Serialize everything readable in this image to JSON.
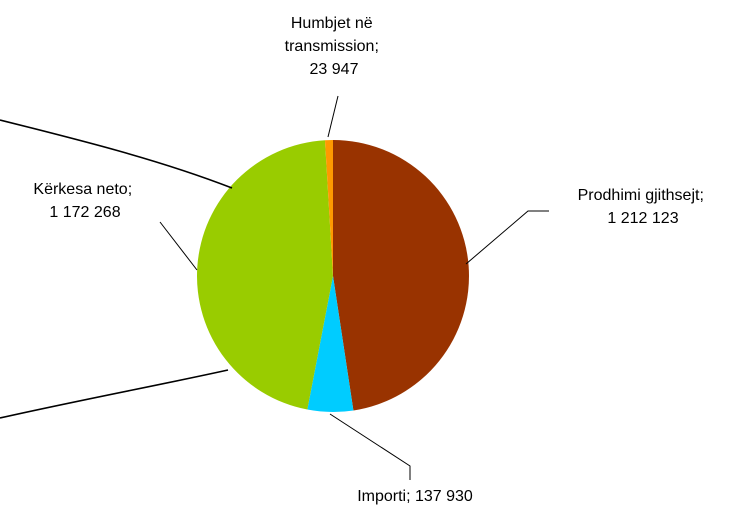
{
  "chart_data": {
    "type": "pie",
    "title": "",
    "legend": "none",
    "slices": [
      {
        "name": "Prodhimi gjithsejt",
        "label_line1": "Prodhimi gjithsejt;",
        "label_line2": "1 212 123",
        "value": 1212123,
        "color": "#993300"
      },
      {
        "name": "Importi",
        "label_line1": "Importi;  137 930",
        "value": 137930,
        "color": "#00CCFF"
      },
      {
        "name": "Kërkesa neto",
        "label_line1": "Kërkesa neto;",
        "label_line2": "1 172 268",
        "value": 1172268,
        "color": "#99CC00"
      },
      {
        "name": "Humbjet në transmission",
        "label_line1": "Humbjet në",
        "label_line2": "transmission;",
        "label_line3": "23 947",
        "value": 23947,
        "color": "#FF9900"
      }
    ]
  }
}
